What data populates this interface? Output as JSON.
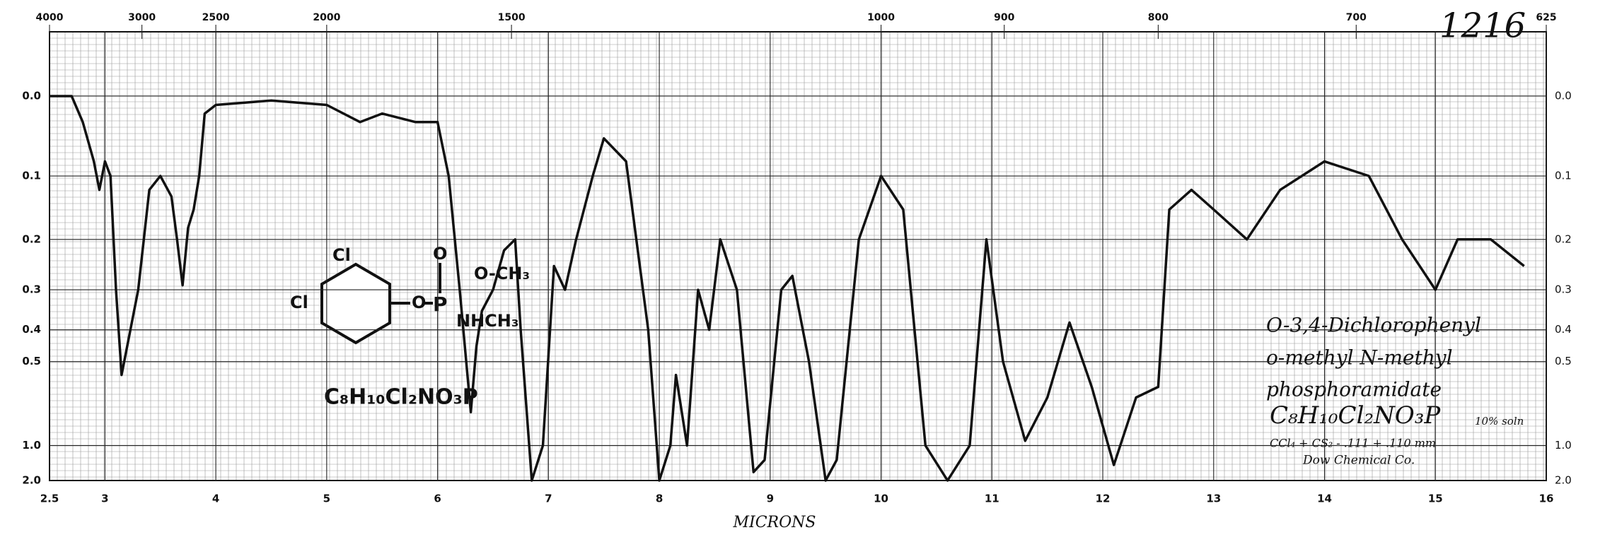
{
  "chart_data": {
    "type": "line",
    "xlabel": "MICRONS",
    "catalog_number": "1216",
    "annotations": [
      "O-3,4-Dichlorophenyl",
      "o-methyl N-methyl",
      "phosphoramidate",
      "C₈H₁₀Cl₂NO₃P",
      "10% soln",
      "CCl₄ + CS₂ - .111 + .110 mm",
      "Dow Chemical Co."
    ],
    "structure_labels": [
      "Cl",
      "Cl",
      "O",
      "P",
      "O",
      "O-CH₃",
      "NHCH₃",
      "C₈H₁₀Cl₂NO₃P"
    ],
    "color": "#111111",
    "x": [
      2.5,
      2.7,
      2.8,
      2.9,
      2.95,
      3.0,
      3.05,
      3.1,
      3.15,
      3.3,
      3.4,
      3.5,
      3.6,
      3.65,
      3.7,
      3.75,
      3.8,
      3.85,
      3.9,
      4.0,
      4.5,
      5.0,
      5.3,
      5.5,
      5.8,
      6.0,
      6.1,
      6.2,
      6.3,
      6.35,
      6.4,
      6.5,
      6.6,
      6.7,
      6.75,
      6.85,
      6.95,
      7.05,
      7.15,
      7.25,
      7.4,
      7.5,
      7.7,
      7.9,
      8.0,
      8.1,
      8.15,
      8.25,
      8.35,
      8.45,
      8.55,
      8.7,
      8.85,
      8.95,
      9.1,
      9.2,
      9.35,
      9.5,
      9.6,
      9.8,
      10.0,
      10.2,
      10.4,
      10.6,
      10.8,
      10.95,
      11.1,
      11.3,
      11.5,
      11.7,
      11.9,
      12.1,
      12.3,
      12.5,
      12.6,
      12.8,
      13.0,
      13.3,
      13.6,
      14.0,
      14.4,
      14.7,
      15.0,
      15.2,
      15.5,
      15.8
    ],
    "values": [
      0.0,
      0.0,
      0.03,
      0.08,
      0.12,
      0.08,
      0.1,
      0.3,
      0.55,
      0.3,
      0.12,
      0.1,
      0.13,
      0.2,
      0.29,
      0.18,
      0.15,
      0.1,
      0.02,
      0.01,
      0.005,
      0.01,
      0.03,
      0.02,
      0.03,
      0.03,
      0.1,
      0.3,
      0.73,
      0.45,
      0.35,
      0.3,
      0.22,
      0.2,
      0.4,
      2.0,
      1.0,
      0.25,
      0.3,
      0.2,
      0.1,
      0.05,
      0.08,
      0.4,
      2.0,
      1.0,
      0.55,
      1.0,
      0.3,
      0.4,
      0.2,
      0.3,
      1.5,
      1.2,
      0.3,
      0.27,
      0.5,
      2.0,
      1.2,
      0.2,
      0.1,
      0.15,
      1.0,
      2.0,
      1.0,
      0.2,
      0.5,
      0.95,
      0.65,
      0.38,
      0.6,
      1.3,
      0.65,
      0.6,
      0.15,
      0.12,
      0.15,
      0.2,
      0.12,
      0.08,
      0.1,
      0.2,
      0.3,
      0.2,
      0.2,
      0.25
    ],
    "xlim": [
      2.5,
      16
    ],
    "xticks": [
      2.5,
      3,
      4,
      5,
      6,
      7,
      8,
      9,
      10,
      11,
      12,
      13,
      14,
      15,
      16
    ],
    "x2lim": [
      4000,
      625
    ],
    "x2ticks": [
      4000,
      3000,
      2500,
      2000,
      1500,
      1000,
      900,
      800,
      700,
      625
    ],
    "ylim": [
      0,
      2
    ],
    "yscale": "transmittance",
    "yticks": [
      {
        "value": 0,
        "label": "0.0"
      },
      0.1,
      0.2,
      0.3,
      0.4,
      0.5,
      {
        "value": 1,
        "label": "1.0"
      },
      {
        "value": 2,
        "label": "2.0"
      }
    ],
    "grid": true
  }
}
